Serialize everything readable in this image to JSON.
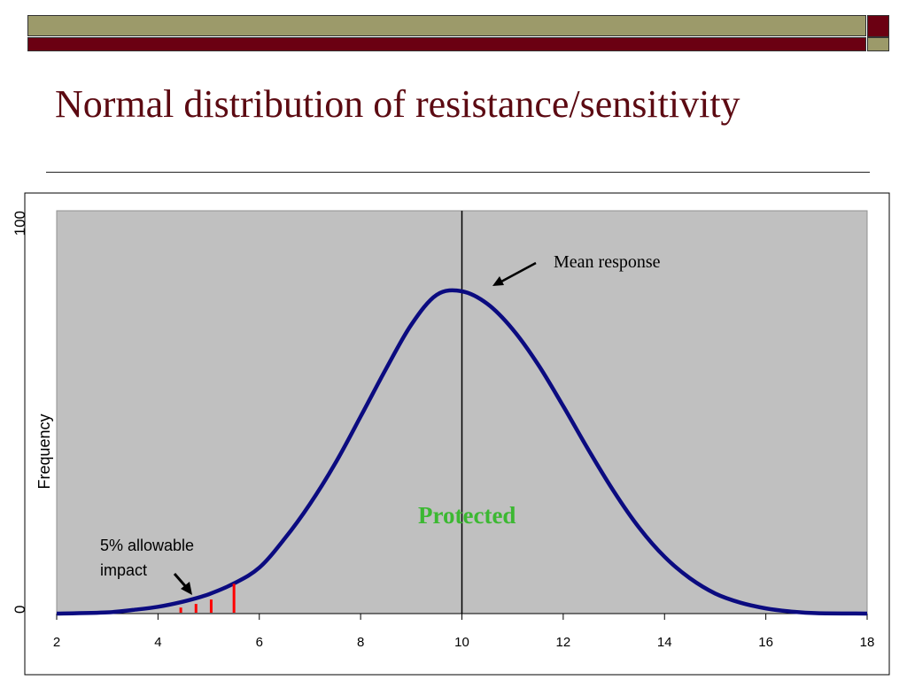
{
  "slide": {
    "title": "Normal distribution of resistance/sensitivity",
    "band_colors": {
      "olive": "#9c9a6a",
      "maroon": "#6b0012"
    },
    "title_color": "#5c0a12"
  },
  "chart_data": {
    "type": "line",
    "title": "",
    "xlabel": "",
    "ylabel": "Frequency",
    "xlim": [
      2,
      18
    ],
    "ylim": [
      0,
      100
    ],
    "x_ticks": [
      "2",
      "4",
      "6",
      "8",
      "10",
      "12",
      "14",
      "16",
      "18"
    ],
    "y_tick_labels": [
      "0",
      "100"
    ],
    "grid": false,
    "plot_background": "#c0c0c0",
    "series": [
      {
        "color": "#0b0b80",
        "x": [
          2,
          3,
          3.5,
          4,
          4.5,
          5,
          5.5,
          6,
          6.5,
          7,
          7.5,
          8,
          8.5,
          9,
          9.5,
          10,
          10.5,
          11,
          11.5,
          12,
          12.5,
          13,
          13.5,
          14,
          14.5,
          15,
          15.5,
          16,
          16.5,
          17,
          18
        ],
        "y": [
          0,
          0.3,
          0.9,
          1.7,
          3.0,
          4.8,
          7.5,
          11.4,
          18.6,
          27.2,
          37.3,
          48.9,
          60.7,
          71.7,
          79.1,
          80.0,
          76.9,
          70.6,
          61.9,
          51.5,
          40.6,
          30.3,
          21.3,
          14.1,
          8.8,
          5.0,
          2.7,
          1.3,
          0.5,
          0.1,
          0
        ]
      }
    ],
    "mean_line_x": 10,
    "threshold_ticks": [
      {
        "x": 4.45,
        "y": 1.5,
        "color": "#ff0000"
      },
      {
        "x": 4.75,
        "y": 2.4,
        "color": "#ff0000"
      },
      {
        "x": 5.05,
        "y": 3.5,
        "color": "#ff0000"
      },
      {
        "x": 5.5,
        "y": 7.4,
        "color": "#ff0000"
      }
    ],
    "annotations": {
      "mean": {
        "text": "Mean response",
        "color": "#000000"
      },
      "protected": {
        "text": "Protected",
        "color": "#3cb832"
      },
      "allowable": {
        "line1": "5% allowable",
        "line2": "impact",
        "color": "#000000"
      }
    }
  }
}
